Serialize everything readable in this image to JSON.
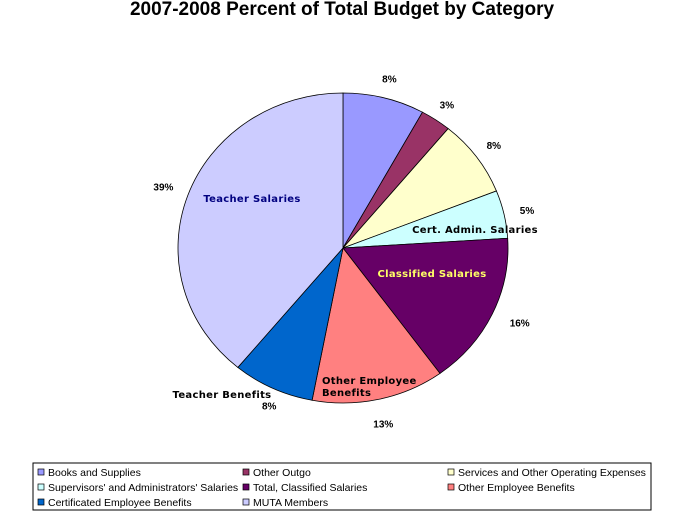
{
  "chart_data": {
    "type": "pie",
    "title": "2007-2008 Percent of Total Budget by Category",
    "slices": [
      {
        "name": "Books and Supplies",
        "value": 8,
        "label": "8%",
        "color": "#9999ff",
        "inner_label": ""
      },
      {
        "name": "Other Outgo",
        "value": 3,
        "label": "3%",
        "color": "#993366",
        "inner_label": ""
      },
      {
        "name": "Services and Other Operating Expenses",
        "value": 8,
        "label": "8%",
        "color": "#ffffcc",
        "inner_label": ""
      },
      {
        "name": "Supervisors' and Administrators' Salaries",
        "value": 5,
        "label": "5%",
        "color": "#ccffff",
        "inner_label": "Cert. Admin. Salaries",
        "inner_color": "#000000"
      },
      {
        "name": "Total, Classified Salaries",
        "value": 16,
        "label": "16%",
        "color": "#660066",
        "inner_label": "Classified Salaries",
        "inner_color": "#ffff66"
      },
      {
        "name": "Other Employee Benefits",
        "value": 13,
        "label": "13%",
        "color": "#ff8080",
        "inner_label": "Other Employee Benefits",
        "inner_color": "#000000"
      },
      {
        "name": "Certificated Employee Benefits",
        "value": 8,
        "label": "8%",
        "color": "#0066cc",
        "inner_label": "Teacher Benefits",
        "inner_color": "#000000"
      },
      {
        "name": "MUTA Members",
        "value": 39,
        "label": "39%",
        "color": "#ccccff",
        "inner_label": "Teacher Salaries",
        "inner_color": "#000080"
      }
    ],
    "legend_placement": "bottom"
  }
}
